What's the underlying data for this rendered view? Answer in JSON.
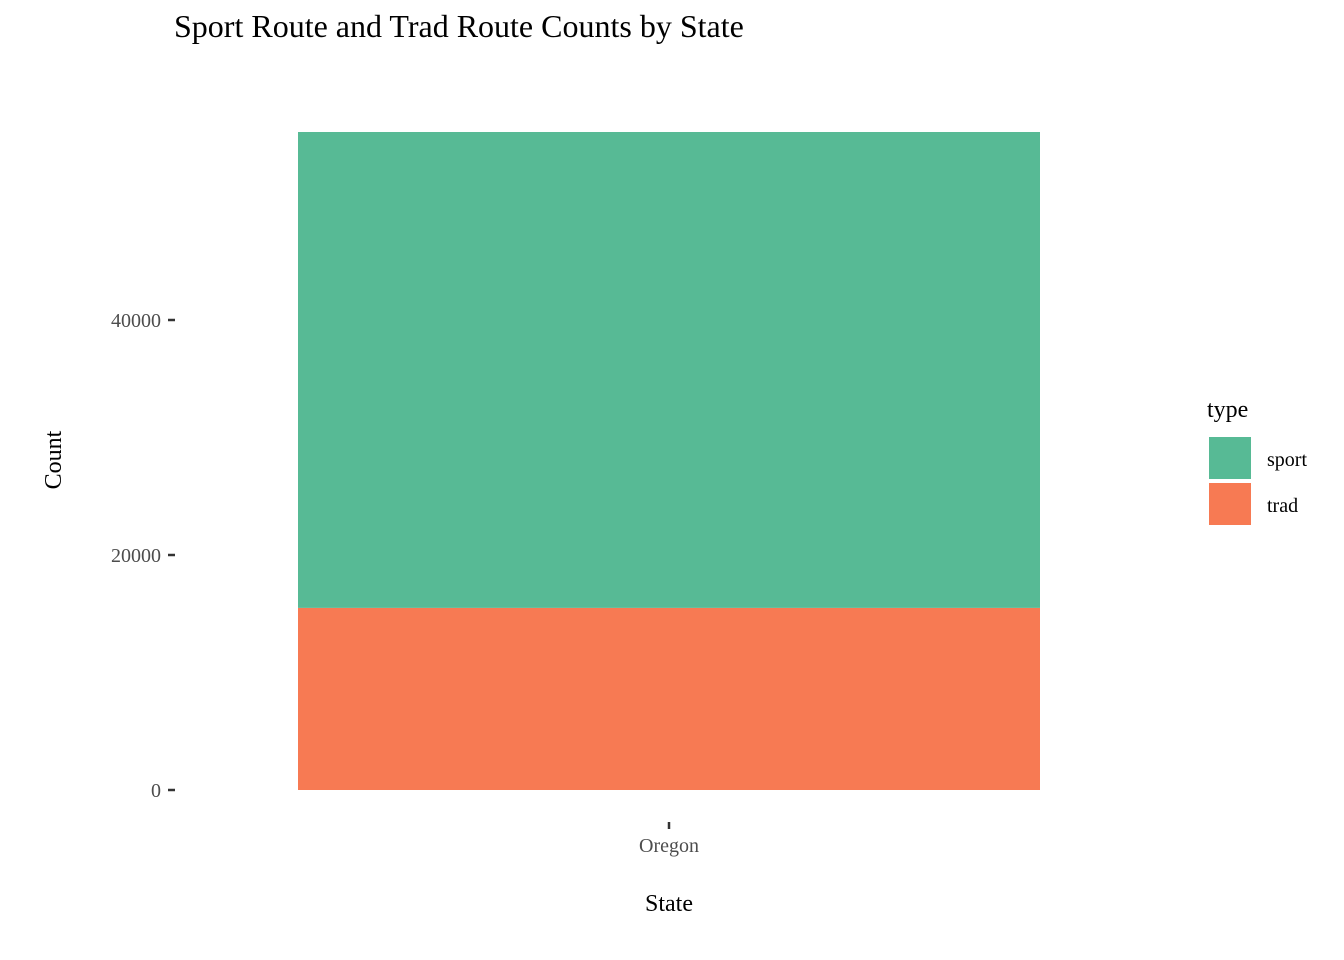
{
  "chart_data": {
    "type": "bar",
    "stacked": true,
    "title": "Sport Route and Trad Route Counts by State",
    "xlabel": "State",
    "ylabel": "Count",
    "categories": [
      "Oregon"
    ],
    "series": [
      {
        "name": "sport",
        "values": [
          40500
        ],
        "color": "#57BA95"
      },
      {
        "name": "trad",
        "values": [
          15500
        ],
        "color": "#F77A53"
      }
    ],
    "yticks": [
      0,
      20000,
      40000
    ],
    "ytick_labels": [
      "0",
      "20000",
      "40000"
    ],
    "ylim": [
      0,
      56000
    ],
    "grid": false,
    "legend": {
      "title": "type",
      "position": "right",
      "items": [
        "sport",
        "trad"
      ]
    }
  }
}
